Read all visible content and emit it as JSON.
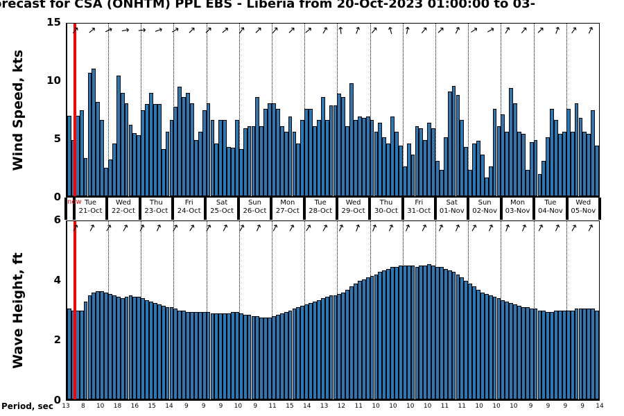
{
  "title": "orecast for CSA (ONHTM) PPL EBS  - Liberia from 20-Oct-2023 01:00:00 to 03-",
  "now_label": "now",
  "colors": {
    "bar_fill": "#2878b5",
    "bar_edge": "#000000",
    "now_line": "#ff0000",
    "gridline": "#000000"
  },
  "wind_panel": {
    "ylabel": "Wind Speed, kts",
    "yticks": [
      0,
      5,
      10,
      15
    ],
    "ylim": [
      0,
      15
    ]
  },
  "wave_panel": {
    "ylabel": "Wave Height, ft",
    "yticks": [
      0,
      2,
      4,
      6
    ],
    "ylim": [
      0,
      6
    ]
  },
  "period_axis": {
    "label": "Period, sec",
    "values": [
      13,
      8,
      10,
      18,
      16,
      15,
      14,
      9,
      9,
      9,
      10,
      9,
      11,
      15,
      14,
      13,
      12,
      11,
      10,
      10,
      10,
      10,
      11,
      11,
      10,
      10,
      10,
      9,
      9,
      9,
      9,
      14
    ]
  },
  "days": [
    {
      "dow": "Tue",
      "date": "21-Oct"
    },
    {
      "dow": "Wed",
      "date": "22-Oct"
    },
    {
      "dow": "Thu",
      "date": "23-Oct"
    },
    {
      "dow": "Fri",
      "date": "24-Oct"
    },
    {
      "dow": "Sat",
      "date": "25-Oct"
    },
    {
      "dow": "Sun",
      "date": "26-Oct"
    },
    {
      "dow": "Mon",
      "date": "27-Oct"
    },
    {
      "dow": "Tue",
      "date": "28-Oct"
    },
    {
      "dow": "Wed",
      "date": "29-Oct"
    },
    {
      "dow": "Thu",
      "date": "30-Oct"
    },
    {
      "dow": "Fri",
      "date": "31-Oct"
    },
    {
      "dow": "Sat",
      "date": "01-Nov"
    },
    {
      "dow": "Sun",
      "date": "02-Nov"
    },
    {
      "dow": "Mon",
      "date": "03-Nov"
    },
    {
      "dow": "Tue",
      "date": "04-Nov"
    },
    {
      "dow": "Wed",
      "date": "05-Nov"
    }
  ],
  "chart_data": [
    {
      "type": "bar",
      "title": "Wind Speed forecast",
      "ylabel": "Wind Speed, kts",
      "ylim": [
        0,
        15
      ],
      "yticks": [
        0,
        5,
        10,
        15
      ],
      "interval_hours": 3,
      "grid": "vertical-dotted-daily",
      "now_marker_index": 2,
      "values": [
        7.0,
        4.9,
        7.0,
        7.5,
        3.3,
        10.7,
        11.1,
        8.2,
        6.6,
        2.5,
        3.2,
        4.6,
        10.5,
        9.0,
        8.1,
        6.2,
        5.5,
        5.3,
        7.5,
        8.0,
        9.0,
        8.0,
        8.0,
        4.1,
        5.6,
        6.6,
        7.8,
        9.5,
        8.6,
        9.0,
        8.1,
        4.9,
        5.6,
        7.5,
        8.1,
        6.6,
        4.6,
        6.6,
        6.6,
        4.3,
        4.2,
        6.6,
        4.1,
        5.9,
        6.1,
        6.1,
        8.6,
        6.1,
        7.6,
        8.1,
        8.1,
        7.6,
        6.1,
        5.6,
        6.9,
        5.6,
        4.6,
        6.6,
        7.6,
        7.6,
        6.1,
        6.6,
        8.6,
        6.6,
        7.9,
        7.9,
        8.9,
        8.6,
        6.1,
        9.8,
        6.6,
        6.9,
        6.8,
        6.9,
        6.6,
        5.6,
        6.4,
        5.1,
        4.6,
        6.9,
        5.6,
        4.4,
        2.6,
        4.6,
        3.6,
        6.1,
        5.9,
        4.9,
        6.4,
        5.9,
        3.1,
        2.3,
        5.1,
        9.1,
        9.6,
        8.8,
        6.6,
        4.3,
        2.3,
        4.6,
        4.8,
        3.6,
        1.6,
        2.6,
        7.6,
        6.1,
        7.1,
        5.6,
        9.4,
        8.1,
        5.6,
        5.4,
        2.3,
        4.7,
        4.9,
        1.9,
        3.1,
        5.1,
        7.6,
        6.6,
        5.4,
        5.6,
        7.6,
        5.6,
        8.1,
        6.8,
        5.6,
        5.4,
        7.5,
        4.4
      ],
      "direction_arrows_deg": [
        50,
        40,
        25,
        10,
        5,
        20,
        30,
        45,
        45,
        40,
        55,
        45,
        50,
        45,
        40,
        60,
        95,
        70,
        50,
        105,
        80,
        50,
        45,
        65,
        35,
        30,
        60,
        50,
        45,
        70,
        55,
        65
      ]
    },
    {
      "type": "bar",
      "title": "Wave Height forecast",
      "ylabel": "Wave Height, ft",
      "ylim": [
        0,
        6
      ],
      "yticks": [
        0,
        2,
        4,
        6
      ],
      "interval_hours": 3,
      "grid": "vertical-dotted-daily",
      "now_marker_index": 2,
      "values": [
        3.05,
        3.0,
        3.0,
        3.0,
        3.3,
        3.5,
        3.6,
        3.65,
        3.65,
        3.6,
        3.55,
        3.5,
        3.45,
        3.4,
        3.45,
        3.5,
        3.45,
        3.45,
        3.4,
        3.35,
        3.3,
        3.25,
        3.2,
        3.15,
        3.1,
        3.1,
        3.05,
        3.0,
        3.0,
        2.95,
        2.95,
        2.95,
        2.95,
        2.95,
        2.95,
        2.9,
        2.9,
        2.9,
        2.9,
        2.9,
        2.95,
        2.95,
        2.9,
        2.85,
        2.85,
        2.8,
        2.8,
        2.75,
        2.75,
        2.75,
        2.8,
        2.85,
        2.9,
        2.95,
        3.0,
        3.05,
        3.1,
        3.15,
        3.2,
        3.25,
        3.3,
        3.35,
        3.4,
        3.45,
        3.5,
        3.5,
        3.55,
        3.6,
        3.7,
        3.8,
        3.9,
        4.0,
        4.05,
        4.1,
        4.15,
        4.2,
        4.3,
        4.35,
        4.4,
        4.45,
        4.45,
        4.5,
        4.5,
        4.5,
        4.5,
        4.45,
        4.5,
        4.5,
        4.55,
        4.5,
        4.45,
        4.45,
        4.4,
        4.35,
        4.3,
        4.2,
        4.1,
        4.0,
        3.9,
        3.8,
        3.7,
        3.6,
        3.55,
        3.5,
        3.45,
        3.4,
        3.35,
        3.3,
        3.25,
        3.2,
        3.15,
        3.1,
        3.1,
        3.05,
        3.05,
        3.0,
        3.0,
        2.95,
        2.95,
        3.0,
        3.0,
        3.0,
        3.0,
        3.0,
        3.05,
        3.05,
        3.05,
        3.05,
        3.05,
        3.0
      ],
      "direction_arrows_deg": [
        60,
        62,
        58,
        60,
        63,
        65,
        60,
        57,
        60,
        62,
        60,
        65,
        62,
        60,
        57,
        60,
        65,
        70,
        68,
        65,
        66,
        62,
        65,
        66,
        60,
        65,
        70,
        66,
        62,
        65,
        60,
        62
      ]
    }
  ]
}
